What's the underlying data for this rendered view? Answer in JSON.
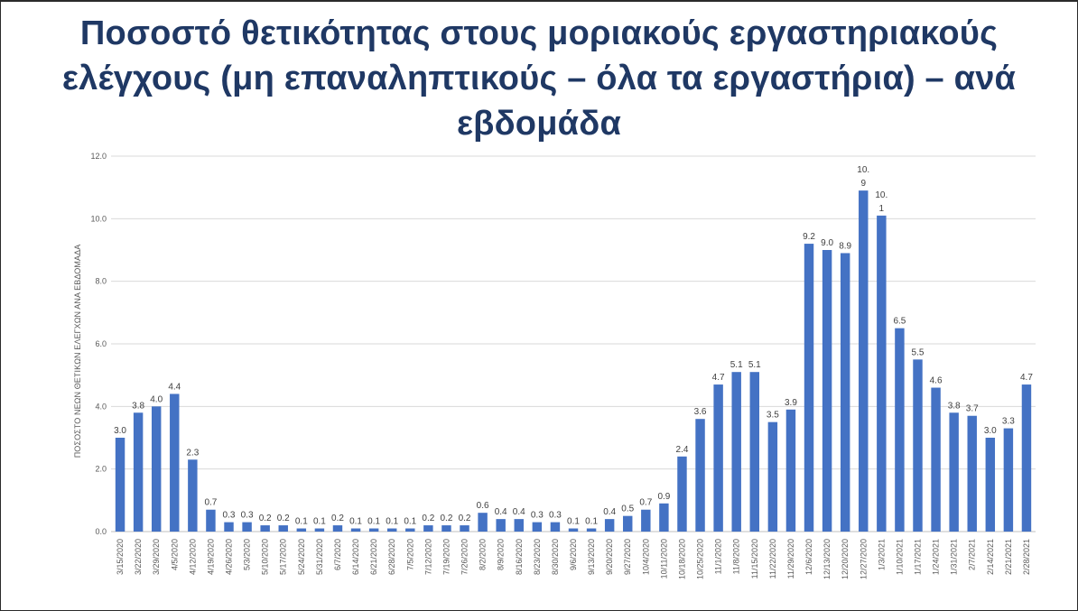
{
  "chart_data": {
    "type": "bar",
    "title": "Ποσοστό θετικότητας στους μοριακούς εργαστηριακούς ελέγχους (μη επαναληπτικούς – όλα τα εργαστήρια) – ανά εβδομάδα",
    "xlabel": "",
    "ylabel": "ΠΟΣΟΣΤΟ ΝΕΩΝ ΘΕΤΙΚΩΝ ΕΛΕΓΧΩΝ ΑΝΑ ΕΒΔΟΜΑΔΑ",
    "ylim": [
      0,
      12
    ],
    "yticks": [
      "0.0",
      "2.0",
      "4.0",
      "6.0",
      "8.0",
      "10.0",
      "12.0"
    ],
    "grid": true,
    "bar_color": "#4472c4",
    "categories": [
      "3/15/2020",
      "3/22/2020",
      "3/29/2020",
      "4/5/2020",
      "4/12/2020",
      "4/19/2020",
      "4/26/2020",
      "5/3/2020",
      "5/10/2020",
      "5/17/2020",
      "5/24/2020",
      "5/31/2020",
      "6/7/2020",
      "6/14/2020",
      "6/21/2020",
      "6/28/2020",
      "7/5/2020",
      "7/12/2020",
      "7/19/2020",
      "7/26/2020",
      "8/2/2020",
      "8/9/2020",
      "8/16/2020",
      "8/23/2020",
      "8/30/2020",
      "9/6/2020",
      "9/13/2020",
      "9/20/2020",
      "9/27/2020",
      "10/4/2020",
      "10/11/2020",
      "10/18/2020",
      "10/25/2020",
      "11/1/2020",
      "11/8/2020",
      "11/15/2020",
      "11/22/2020",
      "11/29/2020",
      "12/6/2020",
      "12/13/2020",
      "12/20/2020",
      "12/27/2020",
      "1/3/2021",
      "1/10/2021",
      "1/17/2021",
      "1/24/2021",
      "1/31/2021",
      "2/7/2021",
      "2/14/2021",
      "2/21/2021",
      "2/28/2021"
    ],
    "values": [
      3.0,
      3.8,
      4.0,
      4.4,
      2.3,
      0.7,
      0.3,
      0.3,
      0.2,
      0.2,
      0.1,
      0.1,
      0.2,
      0.1,
      0.1,
      0.1,
      0.1,
      0.2,
      0.2,
      0.2,
      0.6,
      0.4,
      0.4,
      0.3,
      0.3,
      0.1,
      0.1,
      0.4,
      0.5,
      0.7,
      0.9,
      2.4,
      3.6,
      4.7,
      5.1,
      5.1,
      3.5,
      3.9,
      9.2,
      9.0,
      8.9,
      10.9,
      10.1,
      6.5,
      5.5,
      4.6,
      3.8,
      3.7,
      3.0,
      3.3,
      4.7
    ],
    "data_labels": [
      "3.0",
      "3.8",
      "4.0",
      "4.4",
      "2.3",
      "0.7",
      "0.3",
      "0.3",
      "0.2",
      "0.2",
      "0.1",
      "0.1",
      "0.2",
      "0.1",
      "0.1",
      "0.1",
      "0.1",
      "0.2",
      "0.2",
      "0.2",
      "0.6",
      "0.4",
      "0.4",
      "0.3",
      "0.3",
      "0.1",
      "0.1",
      "0.4",
      "0.5",
      "0.7",
      "0.9",
      "2.4",
      "3.6",
      "4.7",
      "5.1",
      "5.1",
      "3.5",
      "3.9",
      "9.2",
      "9.0",
      "8.9",
      "10.9",
      "10.1",
      "6.5",
      "5.5",
      "4.6",
      "3.8",
      "3.7",
      "3.0",
      "3.3",
      "4.7"
    ]
  }
}
